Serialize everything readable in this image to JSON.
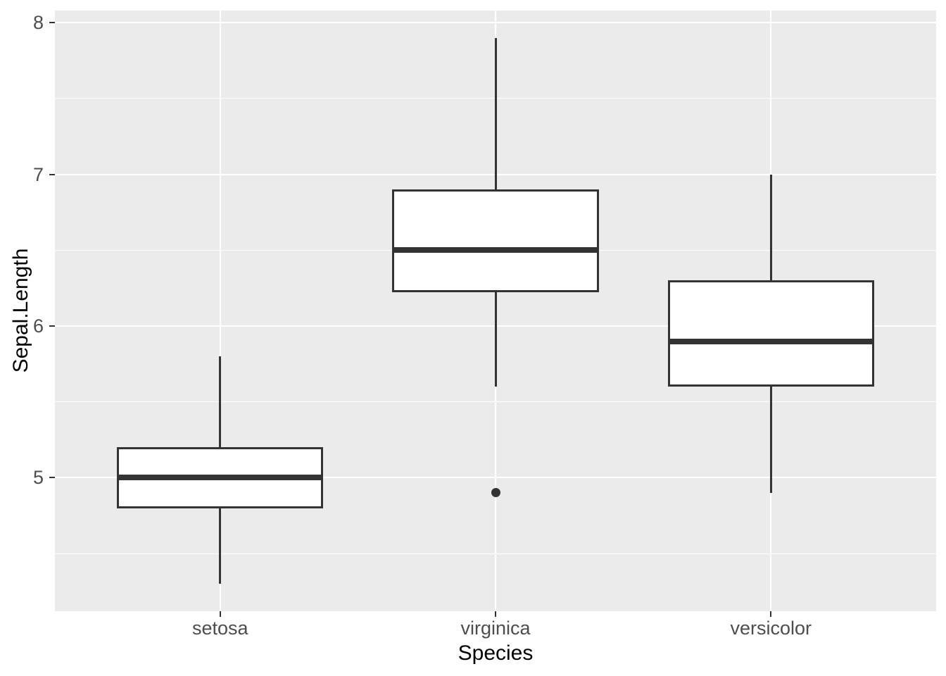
{
  "figure": {
    "background": "#FFFFFF"
  },
  "chart_data": {
    "type": "boxplot",
    "title": "",
    "xlabel": "Species",
    "ylabel": "Sepal.Length",
    "categories": [
      "setosa",
      "virginica",
      "versicolor"
    ],
    "boxes": [
      {
        "category": "setosa",
        "whisker_low": 4.3,
        "q1": 4.8,
        "median": 5.0,
        "q3": 5.2,
        "whisker_high": 5.8,
        "outliers": []
      },
      {
        "category": "virginica",
        "whisker_low": 5.6,
        "q1": 6.225,
        "median": 6.5,
        "q3": 6.9,
        "whisker_high": 7.9,
        "outliers": [
          4.9
        ]
      },
      {
        "category": "versicolor",
        "whisker_low": 4.9,
        "q1": 5.6,
        "median": 5.9,
        "q3": 6.3,
        "whisker_high": 7.0,
        "outliers": []
      }
    ],
    "y_axis": {
      "ticks": [
        5,
        6,
        7,
        8
      ],
      "minor_ticks": [
        4.5,
        5.5,
        6.5,
        7.5
      ],
      "range": [
        4.12,
        8.08
      ]
    },
    "x_axis": {
      "tick_labels": [
        "setosa",
        "virginica",
        "versicolor"
      ]
    },
    "grid": "on",
    "legend": "none",
    "box_width_ratio": 0.75,
    "style": {
      "panel_background": "#EBEBEB",
      "grid_color": "#FFFFFF",
      "box_fill": "#FFFFFF",
      "line_color": "#333333",
      "outlier_color": "#333333",
      "tick_mark_color": "#333333",
      "tick_label_color": "#4D4D4D",
      "axis_title_color": "#000000"
    }
  }
}
